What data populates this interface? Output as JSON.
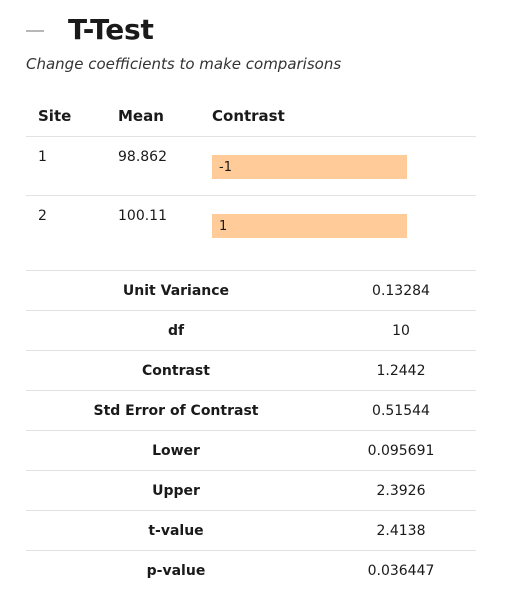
{
  "header": {
    "title": "T-Test",
    "subtitle": "Change coefficients to make comparisons"
  },
  "comparison_table": {
    "headers": {
      "site": "Site",
      "mean": "Mean",
      "contrast": "Contrast"
    },
    "rows": [
      {
        "site": "1",
        "mean": "98.862",
        "contrast": "-1"
      },
      {
        "site": "2",
        "mean": "100.11",
        "contrast": "1"
      }
    ],
    "input_color": "#ffcc99"
  },
  "stats": [
    {
      "label": "Unit Variance",
      "value": "0.13284"
    },
    {
      "label": "df",
      "value": "10"
    },
    {
      "label": "Contrast",
      "value": "1.2442"
    },
    {
      "label": "Std Error of Contrast",
      "value": "0.51544"
    },
    {
      "label": "Lower",
      "value": "0.095691"
    },
    {
      "label": "Upper",
      "value": "2.3926"
    },
    {
      "label": "t-value",
      "value": "2.4138"
    },
    {
      "label": "p-value",
      "value": "0.036447"
    }
  ]
}
